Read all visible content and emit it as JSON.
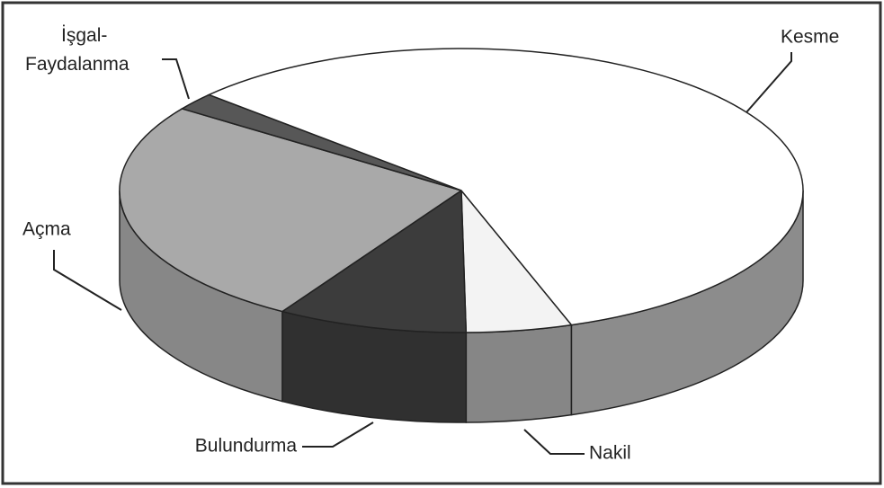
{
  "chart_data": {
    "type": "pie3d",
    "categories": [
      "Nakil",
      "Bulundurma",
      "Açma",
      "İşgal-Faydalanma",
      "Kesme"
    ],
    "values": [
      5,
      9,
      26,
      2,
      58
    ],
    "colors": [
      "#f3f3f3",
      "#3c3c3c",
      "#a9a9a9",
      "#575757",
      "#ffffff"
    ]
  }
}
